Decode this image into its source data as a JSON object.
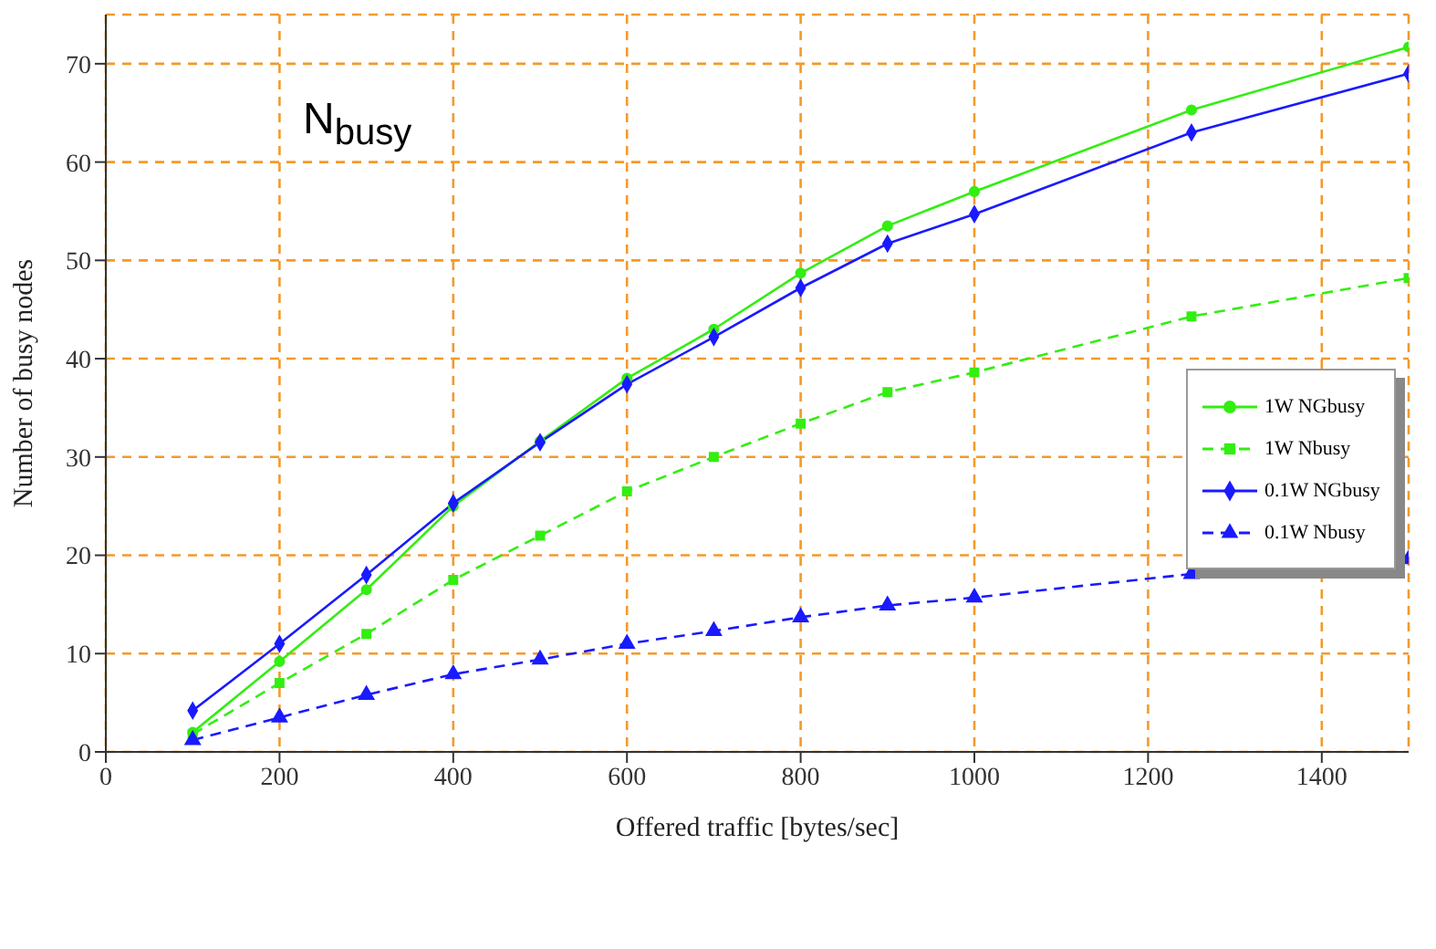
{
  "chart_data": {
    "type": "line",
    "xlabel": "Offered traffic [bytes/sec]",
    "ylabel": "Number of busy nodes",
    "annotations": [
      "N$_{busy}$"
    ],
    "x": [
      100,
      200,
      300,
      400,
      500,
      600,
      700,
      800,
      900,
      1000,
      1250,
      1500
    ],
    "series": [
      {
        "name": "1W NGbusy",
        "color": "#33ee11",
        "marker": "circle",
        "line_style": "solid",
        "values": [
          2,
          9.2,
          16.5,
          25,
          31.6,
          38,
          43,
          48.7,
          53.5,
          57,
          65.3,
          71.7
        ]
      },
      {
        "name": "1W Nbusy",
        "color": "#33ee11",
        "marker": "square",
        "line_style": "dashed",
        "values": [
          1.8,
          7,
          12,
          17.5,
          22,
          26.5,
          30,
          33.4,
          36.6,
          38.6,
          44.3,
          48.2
        ]
      },
      {
        "name": "0.1W NGbusy",
        "color": "#1a1aff",
        "marker": "diamond",
        "line_style": "solid",
        "values": [
          4.2,
          11,
          18,
          25.3,
          31.5,
          37.4,
          42.2,
          47.2,
          51.7,
          54.7,
          63,
          69
        ]
      },
      {
        "name": "0.1W Nbusy",
        "color": "#1a1aff",
        "marker": "triangle",
        "line_style": "dashed",
        "values": [
          1.2,
          3.5,
          5.8,
          7.9,
          9.4,
          11,
          12.3,
          13.7,
          14.9,
          15.7,
          18.1,
          19.6
        ]
      }
    ],
    "xlim": [
      0,
      1500
    ],
    "xticks": [
      0,
      200,
      400,
      600,
      800,
      1000,
      1200,
      1400
    ],
    "ylim": [
      0,
      75
    ],
    "yticks": [
      0,
      10,
      20,
      30,
      40,
      50,
      60,
      70
    ],
    "grid": true,
    "legend": "right"
  }
}
